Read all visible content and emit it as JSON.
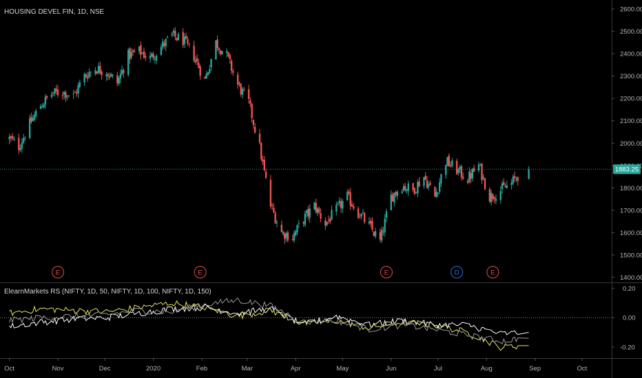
{
  "chart_data": [
    {
      "type": "candlestick",
      "title": "HOUSING DEVEL FIN, 1D, NSE",
      "ylim": [
        1380,
        2640
      ],
      "y_ticks": [
        "1400.00",
        "1500.00",
        "1600.00",
        "1700.00",
        "1800.00",
        "1900.00",
        "2000.00",
        "2100.00",
        "2200.00",
        "2300.00",
        "2400.00",
        "2500.00",
        "2600.00"
      ],
      "last_price": "1883.25",
      "grid": false,
      "up_color": "#26a69a",
      "down_color": "#ef5350",
      "weekly_closes": [
        [
          "2019-10-01",
          2020
        ],
        [
          "2019-10-07",
          1985
        ],
        [
          "2019-10-14",
          2085
        ],
        [
          "2019-10-21",
          2170
        ],
        [
          "2019-10-28",
          2220
        ],
        [
          "2019-11-04",
          2230
        ],
        [
          "2019-11-11",
          2210
        ],
        [
          "2019-11-18",
          2300
        ],
        [
          "2019-11-25",
          2335
        ],
        [
          "2019-12-02",
          2320
        ],
        [
          "2019-12-09",
          2270
        ],
        [
          "2019-12-16",
          2390
        ],
        [
          "2019-12-23",
          2410
        ],
        [
          "2019-12-30",
          2380
        ],
        [
          "2020-01-06",
          2430
        ],
        [
          "2020-01-13",
          2480
        ],
        [
          "2020-01-20",
          2460
        ],
        [
          "2020-01-27",
          2390
        ],
        [
          "2020-02-03",
          2280
        ],
        [
          "2020-02-10",
          2450
        ],
        [
          "2020-02-17",
          2390
        ],
        [
          "2020-02-24",
          2260
        ],
        [
          "2020-03-02",
          2180
        ],
        [
          "2020-03-09",
          1980
        ],
        [
          "2020-03-16",
          1720
        ],
        [
          "2020-03-23",
          1600
        ],
        [
          "2020-03-30",
          1580
        ],
        [
          "2020-04-06",
          1660
        ],
        [
          "2020-04-13",
          1720
        ],
        [
          "2020-04-20",
          1640
        ],
        [
          "2020-04-27",
          1700
        ],
        [
          "2020-05-04",
          1760
        ],
        [
          "2020-05-11",
          1690
        ],
        [
          "2020-05-18",
          1630
        ],
        [
          "2020-05-25",
          1560
        ],
        [
          "2020-06-01",
          1760
        ],
        [
          "2020-06-08",
          1810
        ],
        [
          "2020-06-15",
          1790
        ],
        [
          "2020-06-22",
          1850
        ],
        [
          "2020-06-29",
          1760
        ],
        [
          "2020-07-06",
          1920
        ],
        [
          "2020-07-13",
          1880
        ],
        [
          "2020-07-20",
          1840
        ],
        [
          "2020-07-27",
          1900
        ],
        [
          "2020-08-03",
          1760
        ],
        [
          "2020-08-10",
          1790
        ],
        [
          "2020-08-17",
          1820
        ],
        [
          "2020-08-24",
          1883.25
        ]
      ],
      "event_markers": [
        {
          "date": "2019-11-01",
          "label": "E",
          "kind": "earnings"
        },
        {
          "date": "2020-01-31",
          "label": "E",
          "kind": "earnings"
        },
        {
          "date": "2020-05-29",
          "label": "E",
          "kind": "earnings"
        },
        {
          "date": "2020-07-13",
          "label": "D",
          "kind": "dividend"
        },
        {
          "date": "2020-08-05",
          "label": "E",
          "kind": "earnings"
        }
      ]
    },
    {
      "type": "line",
      "title": "ElearnMarkets RS (NIFTY, 1D, 50, NIFTY, 1D, 100, NIFTY, 1D, 150)",
      "ylim": [
        -0.27,
        0.23
      ],
      "y_ticks": [
        "0.20",
        "0.00",
        "-0.20"
      ],
      "zero_line": true,
      "series": [
        {
          "color": "#e6e65a",
          "weekly_values": [
            [
              "2019-10-01",
              0.03
            ],
            [
              "2019-10-21",
              0.06
            ],
            [
              "2019-11-11",
              0.05
            ],
            [
              "2019-12-02",
              0.04
            ],
            [
              "2019-12-23",
              0.07
            ],
            [
              "2020-01-13",
              0.1
            ],
            [
              "2020-02-03",
              0.07
            ],
            [
              "2020-02-24",
              0.01
            ],
            [
              "2020-03-16",
              0.05
            ],
            [
              "2020-04-06",
              -0.04
            ],
            [
              "2020-04-27",
              -0.02
            ],
            [
              "2020-05-18",
              -0.07
            ],
            [
              "2020-06-08",
              -0.03
            ],
            [
              "2020-06-29",
              -0.05
            ],
            [
              "2020-07-20",
              -0.1
            ],
            [
              "2020-08-10",
              -0.2
            ],
            [
              "2020-08-24",
              -0.19
            ]
          ]
        },
        {
          "color": "#ffffff",
          "weekly_values": [
            [
              "2019-10-01",
              -0.06
            ],
            [
              "2019-10-21",
              -0.03
            ],
            [
              "2019-11-11",
              -0.01
            ],
            [
              "2019-12-02",
              0.0
            ],
            [
              "2019-12-23",
              0.03
            ],
            [
              "2020-01-13",
              0.06
            ],
            [
              "2020-02-03",
              0.07
            ],
            [
              "2020-02-24",
              0.03
            ],
            [
              "2020-03-16",
              0.06
            ],
            [
              "2020-04-06",
              -0.05
            ],
            [
              "2020-04-27",
              0.01
            ],
            [
              "2020-05-18",
              -0.05
            ],
            [
              "2020-06-08",
              -0.02
            ],
            [
              "2020-06-29",
              -0.05
            ],
            [
              "2020-07-20",
              -0.05
            ],
            [
              "2020-08-10",
              -0.11
            ],
            [
              "2020-08-24",
              -0.1
            ]
          ]
        },
        {
          "color": "#9a9a9a",
          "weekly_values": [
            [
              "2019-10-01",
              -0.02
            ],
            [
              "2019-10-21",
              0.0
            ],
            [
              "2019-11-11",
              0.01
            ],
            [
              "2019-12-02",
              0.02
            ],
            [
              "2019-12-23",
              0.05
            ],
            [
              "2020-01-13",
              0.04
            ],
            [
              "2020-02-03",
              0.09
            ],
            [
              "2020-02-24",
              0.12
            ],
            [
              "2020-03-16",
              0.08
            ],
            [
              "2020-04-06",
              -0.03
            ],
            [
              "2020-04-27",
              -0.02
            ],
            [
              "2020-05-18",
              -0.08
            ],
            [
              "2020-06-08",
              -0.05
            ],
            [
              "2020-06-29",
              -0.08
            ],
            [
              "2020-07-20",
              -0.12
            ],
            [
              "2020-08-10",
              -0.16
            ],
            [
              "2020-08-24",
              -0.14
            ]
          ]
        }
      ]
    }
  ],
  "x_axis": {
    "start": "2019-09-25",
    "end": "2020-10-20",
    "labels": [
      {
        "text": "Oct",
        "date": "2019-10-01"
      },
      {
        "text": "Nov",
        "date": "2019-11-01"
      },
      {
        "text": "Dec",
        "date": "2019-12-01"
      },
      {
        "text": "2020",
        "date": "2020-01-01"
      },
      {
        "text": "Feb",
        "date": "2020-02-01"
      },
      {
        "text": "Mar",
        "date": "2020-03-01"
      },
      {
        "text": "Apr",
        "date": "2020-04-01"
      },
      {
        "text": "May",
        "date": "2020-05-01"
      },
      {
        "text": "Jun",
        "date": "2020-06-01"
      },
      {
        "text": "Jul",
        "date": "2020-07-01"
      },
      {
        "text": "Aug",
        "date": "2020-08-01"
      },
      {
        "text": "Sep",
        "date": "2020-09-01"
      },
      {
        "text": "Oct",
        "date": "2020-10-01"
      }
    ]
  }
}
